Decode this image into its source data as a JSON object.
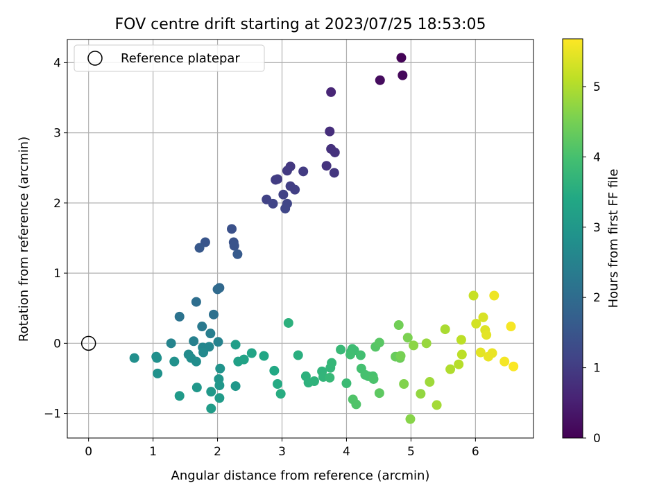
{
  "chart_data": {
    "type": "scatter",
    "title": "FOV centre drift starting at 2023/07/25 18:53:05",
    "xlabel": "Angular distance from reference (arcmin)",
    "ylabel": "Rotation from reference (arcmin)",
    "xlim": [
      -0.33,
      6.9
    ],
    "ylim": [
      -1.35,
      4.33
    ],
    "xticks": [
      0,
      1,
      2,
      3,
      4,
      5,
      6
    ],
    "yticks": [
      -1,
      0,
      1,
      2,
      3,
      4
    ],
    "grid": true,
    "legend": {
      "placement": "top-left",
      "entries": [
        "Reference platepar"
      ]
    },
    "reference_point": {
      "x": 0,
      "y": 0,
      "label": "Reference platepar"
    },
    "colorbar": {
      "label": "Hours from first FF file",
      "colormap": "viridis",
      "range": [
        0,
        5.68
      ],
      "ticks": [
        0,
        1,
        2,
        3,
        4,
        5
      ]
    },
    "series": [
      {
        "points": [
          {
            "x": 4.85,
            "y": 4.07,
            "c": 0.05
          },
          {
            "x": 4.87,
            "y": 3.82,
            "c": 0.12
          },
          {
            "x": 4.52,
            "y": 3.75,
            "c": 0.18
          },
          {
            "x": 3.76,
            "y": 3.58,
            "c": 0.6
          },
          {
            "x": 3.74,
            "y": 3.02,
            "c": 0.75
          },
          {
            "x": 3.76,
            "y": 2.77,
            "c": 0.8
          },
          {
            "x": 3.82,
            "y": 2.72,
            "c": 0.82
          },
          {
            "x": 3.69,
            "y": 2.53,
            "c": 0.85
          },
          {
            "x": 3.81,
            "y": 2.43,
            "c": 0.88
          },
          {
            "x": 3.13,
            "y": 2.52,
            "c": 0.92
          },
          {
            "x": 3.08,
            "y": 2.46,
            "c": 0.95
          },
          {
            "x": 3.33,
            "y": 2.45,
            "c": 0.97
          },
          {
            "x": 2.93,
            "y": 2.34,
            "c": 1.0
          },
          {
            "x": 2.9,
            "y": 2.33,
            "c": 1.02
          },
          {
            "x": 3.13,
            "y": 2.24,
            "c": 1.05
          },
          {
            "x": 3.2,
            "y": 2.19,
            "c": 1.07
          },
          {
            "x": 3.02,
            "y": 2.12,
            "c": 1.1
          },
          {
            "x": 2.76,
            "y": 2.05,
            "c": 1.12
          },
          {
            "x": 2.86,
            "y": 1.99,
            "c": 1.15
          },
          {
            "x": 3.08,
            "y": 1.99,
            "c": 1.17
          },
          {
            "x": 3.05,
            "y": 1.92,
            "c": 1.2
          },
          {
            "x": 2.22,
            "y": 1.63,
            "c": 1.4
          },
          {
            "x": 2.25,
            "y": 1.44,
            "c": 1.45
          },
          {
            "x": 2.26,
            "y": 1.39,
            "c": 1.48
          },
          {
            "x": 1.81,
            "y": 1.44,
            "c": 1.5
          },
          {
            "x": 1.72,
            "y": 1.36,
            "c": 1.55
          },
          {
            "x": 2.31,
            "y": 1.27,
            "c": 1.6
          },
          {
            "x": 2.03,
            "y": 0.79,
            "c": 1.9
          },
          {
            "x": 2.0,
            "y": 0.77,
            "c": 1.95
          },
          {
            "x": 1.67,
            "y": 0.59,
            "c": 2.05
          },
          {
            "x": 1.94,
            "y": 0.41,
            "c": 2.1
          },
          {
            "x": 1.41,
            "y": 0.38,
            "c": 2.15
          },
          {
            "x": 1.76,
            "y": 0.24,
            "c": 2.3
          },
          {
            "x": 1.89,
            "y": 0.14,
            "c": 2.4
          },
          {
            "x": 1.63,
            "y": 0.03,
            "c": 2.45
          },
          {
            "x": 2.01,
            "y": 0.02,
            "c": 2.5
          },
          {
            "x": 1.28,
            "y": 0.0,
            "c": 2.55
          },
          {
            "x": 1.77,
            "y": -0.06,
            "c": 2.6
          },
          {
            "x": 1.87,
            "y": -0.05,
            "c": 2.6
          },
          {
            "x": 1.78,
            "y": -0.13,
            "c": 2.65
          },
          {
            "x": 1.55,
            "y": -0.16,
            "c": 2.7
          },
          {
            "x": 1.59,
            "y": -0.21,
            "c": 2.75
          },
          {
            "x": 1.67,
            "y": -0.26,
            "c": 2.75
          },
          {
            "x": 0.71,
            "y": -0.21,
            "c": 2.8
          },
          {
            "x": 1.05,
            "y": -0.19,
            "c": 2.8
          },
          {
            "x": 1.06,
            "y": -0.21,
            "c": 2.82
          },
          {
            "x": 1.33,
            "y": -0.26,
            "c": 2.85
          },
          {
            "x": 1.07,
            "y": -0.43,
            "c": 2.87
          },
          {
            "x": 2.04,
            "y": -0.36,
            "c": 2.9
          },
          {
            "x": 2.02,
            "y": -0.51,
            "c": 2.95
          },
          {
            "x": 2.03,
            "y": -0.6,
            "c": 2.98
          },
          {
            "x": 2.28,
            "y": -0.61,
            "c": 3.0
          },
          {
            "x": 1.68,
            "y": -0.63,
            "c": 3.0
          },
          {
            "x": 1.9,
            "y": -0.69,
            "c": 3.02
          },
          {
            "x": 1.41,
            "y": -0.75,
            "c": 3.05
          },
          {
            "x": 2.03,
            "y": -0.78,
            "c": 3.08
          },
          {
            "x": 1.9,
            "y": -0.93,
            "c": 3.1
          },
          {
            "x": 2.28,
            "y": -0.02,
            "c": 3.15
          },
          {
            "x": 2.32,
            "y": -0.26,
            "c": 3.2
          },
          {
            "x": 2.41,
            "y": -0.23,
            "c": 3.25
          },
          {
            "x": 2.53,
            "y": -0.14,
            "c": 3.3
          },
          {
            "x": 2.72,
            "y": -0.18,
            "c": 3.35
          },
          {
            "x": 2.88,
            "y": -0.39,
            "c": 3.4
          },
          {
            "x": 2.93,
            "y": -0.58,
            "c": 3.45
          },
          {
            "x": 2.98,
            "y": -0.72,
            "c": 3.5
          },
          {
            "x": 3.1,
            "y": 0.29,
            "c": 3.6
          },
          {
            "x": 3.25,
            "y": -0.17,
            "c": 3.55
          },
          {
            "x": 3.37,
            "y": -0.47,
            "c": 3.6
          },
          {
            "x": 3.41,
            "y": -0.56,
            "c": 3.62
          },
          {
            "x": 3.5,
            "y": -0.54,
            "c": 3.65
          },
          {
            "x": 3.62,
            "y": -0.4,
            "c": 3.67
          },
          {
            "x": 3.64,
            "y": -0.48,
            "c": 3.7
          },
          {
            "x": 3.75,
            "y": -0.35,
            "c": 3.72
          },
          {
            "x": 3.77,
            "y": -0.28,
            "c": 3.75
          },
          {
            "x": 3.74,
            "y": -0.49,
            "c": 3.77
          },
          {
            "x": 3.91,
            "y": -0.09,
            "c": 3.8
          },
          {
            "x": 4.0,
            "y": -0.57,
            "c": 3.85
          },
          {
            "x": 4.09,
            "y": -0.08,
            "c": 3.88
          },
          {
            "x": 4.07,
            "y": -0.12,
            "c": 3.9
          },
          {
            "x": 4.12,
            "y": -0.1,
            "c": 3.9
          },
          {
            "x": 4.06,
            "y": -0.16,
            "c": 3.92
          },
          {
            "x": 4.22,
            "y": -0.17,
            "c": 3.95
          },
          {
            "x": 4.23,
            "y": -0.36,
            "c": 3.97
          },
          {
            "x": 4.29,
            "y": -0.45,
            "c": 4.0
          },
          {
            "x": 4.34,
            "y": -0.47,
            "c": 4.0
          },
          {
            "x": 4.41,
            "y": -0.47,
            "c": 4.02
          },
          {
            "x": 4.42,
            "y": -0.51,
            "c": 4.05
          },
          {
            "x": 4.1,
            "y": -0.8,
            "c": 4.1
          },
          {
            "x": 4.15,
            "y": -0.87,
            "c": 4.1
          },
          {
            "x": 4.45,
            "y": -0.05,
            "c": 4.15
          },
          {
            "x": 4.51,
            "y": 0.01,
            "c": 4.2
          },
          {
            "x": 4.51,
            "y": -0.71,
            "c": 4.25
          },
          {
            "x": 4.76,
            "y": -0.19,
            "c": 4.35
          },
          {
            "x": 4.83,
            "y": -0.21,
            "c": 4.4
          },
          {
            "x": 4.81,
            "y": 0.26,
            "c": 4.45
          },
          {
            "x": 4.84,
            "y": -0.18,
            "c": 4.5
          },
          {
            "x": 4.95,
            "y": 0.08,
            "c": 4.55
          },
          {
            "x": 4.89,
            "y": -0.58,
            "c": 4.6
          },
          {
            "x": 4.99,
            "y": -1.08,
            "c": 4.65
          },
          {
            "x": 5.04,
            "y": -0.03,
            "c": 4.7
          },
          {
            "x": 5.15,
            "y": -0.72,
            "c": 4.75
          },
          {
            "x": 5.24,
            "y": 0.0,
            "c": 4.8
          },
          {
            "x": 5.29,
            "y": -0.55,
            "c": 4.85
          },
          {
            "x": 5.4,
            "y": -0.88,
            "c": 4.9
          },
          {
            "x": 5.53,
            "y": 0.2,
            "c": 4.95
          },
          {
            "x": 5.61,
            "y": -0.37,
            "c": 5.0
          },
          {
            "x": 5.74,
            "y": -0.3,
            "c": 5.05
          },
          {
            "x": 5.78,
            "y": 0.05,
            "c": 5.1
          },
          {
            "x": 5.79,
            "y": -0.16,
            "c": 5.1
          },
          {
            "x": 5.97,
            "y": 0.68,
            "c": 5.2
          },
          {
            "x": 6.01,
            "y": 0.28,
            "c": 5.3
          },
          {
            "x": 6.12,
            "y": 0.37,
            "c": 5.35
          },
          {
            "x": 6.15,
            "y": 0.19,
            "c": 5.4
          },
          {
            "x": 6.17,
            "y": 0.12,
            "c": 5.45
          },
          {
            "x": 6.08,
            "y": -0.13,
            "c": 5.45
          },
          {
            "x": 6.2,
            "y": -0.19,
            "c": 5.5
          },
          {
            "x": 6.26,
            "y": -0.14,
            "c": 5.5
          },
          {
            "x": 6.29,
            "y": 0.68,
            "c": 5.55
          },
          {
            "x": 6.45,
            "y": -0.26,
            "c": 5.6
          },
          {
            "x": 6.55,
            "y": 0.24,
            "c": 5.62
          },
          {
            "x": 6.59,
            "y": -0.33,
            "c": 5.65
          }
        ]
      }
    ]
  }
}
